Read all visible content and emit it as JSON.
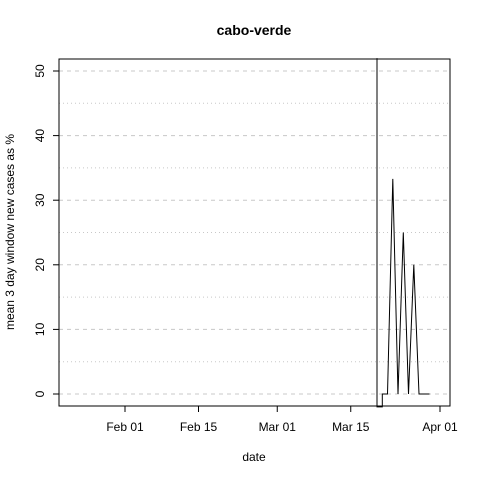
{
  "chart_data": {
    "type": "line",
    "title": "cabo-verde",
    "xlabel": "date",
    "ylabel": "mean  3  day window new cases as %",
    "x_ticks": [
      "Feb 01",
      "Feb 15",
      "Mar 01",
      "Mar 15",
      "Apr 01"
    ],
    "x_tick_dates": [
      "2020-02-01",
      "2020-02-15",
      "2020-03-01",
      "2020-03-15",
      "2020-04-01"
    ],
    "xlim": [
      "2020-01-20",
      "2020-04-01"
    ],
    "y_ticks": [
      0,
      10,
      20,
      30,
      40,
      50
    ],
    "ylim": [
      -2,
      52
    ],
    "grid": "dashed-horizontal",
    "series": [
      {
        "x": [
          "2020-03-20",
          "2020-03-20",
          "2020-03-21",
          "2020-03-21",
          "2020-03-22",
          "2020-03-23",
          "2020-03-24",
          "2020-03-25",
          "2020-03-26",
          "2020-03-27",
          "2020-03-28",
          "2020-03-29",
          "2020-03-30"
        ],
        "values": [
          52,
          -2,
          -2,
          0,
          0,
          33.3,
          0,
          25,
          0,
          20,
          0,
          0,
          0
        ]
      }
    ]
  }
}
